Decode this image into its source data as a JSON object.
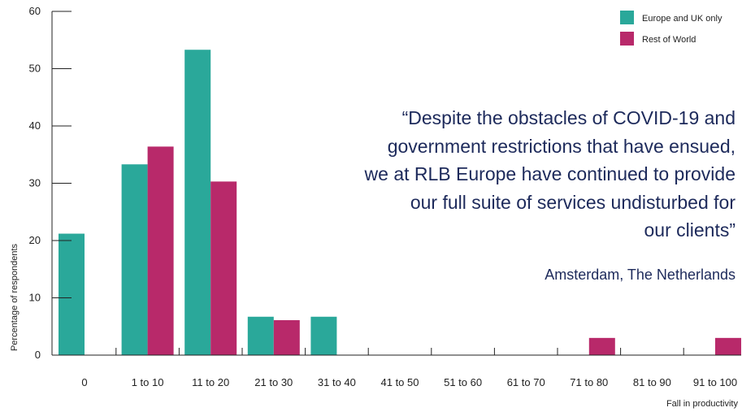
{
  "chart_data": {
    "type": "bar",
    "xlabel": "Fall in productivity",
    "ylabel": "Percentage of respondents",
    "ylim": [
      0,
      60
    ],
    "yticks": [
      0,
      10,
      20,
      30,
      40,
      50,
      60
    ],
    "grid": false,
    "legend_position": "top-right",
    "categories": [
      "0",
      "1 to 10",
      "11 to 20",
      "21 to 30",
      "31 to 40",
      "41 to 50",
      "51 to 60",
      "61 to 70",
      "71 to 80",
      "81 to 90",
      "91 to 100"
    ],
    "series": [
      {
        "name": "Europe and UK only",
        "color": "#2aa89a",
        "values": [
          21.2,
          33.3,
          53.3,
          6.7,
          6.7,
          0,
          0,
          0,
          0,
          0,
          0
        ]
      },
      {
        "name": "Rest of World",
        "color": "#b8296a",
        "values": [
          0,
          36.4,
          30.3,
          6.1,
          0,
          0,
          0,
          0,
          3.0,
          0,
          3.0
        ]
      }
    ]
  },
  "quote": {
    "lines": [
      "“Despite the obstacles of COVID-19 and",
      "government restrictions that have ensued,",
      "we at RLB Europe have continued to provide",
      "our full suite of services undisturbed for",
      "our clients”"
    ],
    "source": "Amsterdam, The Netherlands"
  }
}
